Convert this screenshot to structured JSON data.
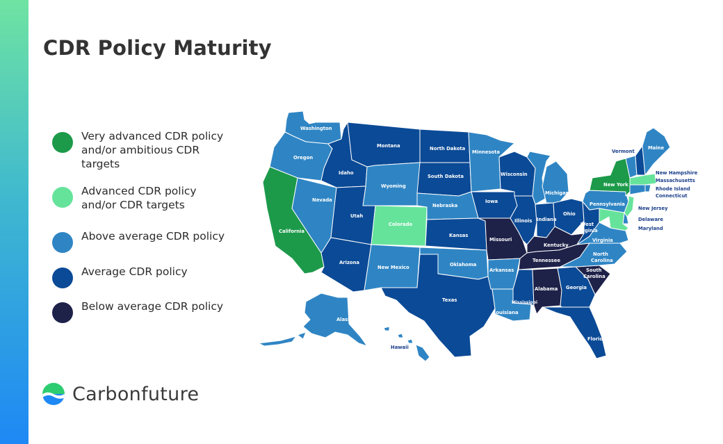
{
  "title": "CDR Policy Maturity",
  "colors": {
    "very_advanced": "#1c9a4a",
    "advanced": "#66e39b",
    "above_average": "#2f85c4",
    "average": "#0b4a96",
    "below_average": "#1e2249"
  },
  "legend": [
    {
      "key": "very_advanced",
      "label": "Very advanced CDR policy and/or ambitious CDR targets"
    },
    {
      "key": "advanced",
      "label": "Advanced CDR policy and/or CDR targets"
    },
    {
      "key": "above_average",
      "label": "Above average CDR policy"
    },
    {
      "key": "average",
      "label": "Average CDR policy"
    },
    {
      "key": "below_average",
      "label": "Below average CDR policy"
    }
  ],
  "map": {
    "states": [
      {
        "name": "Washington",
        "category": "above_average"
      },
      {
        "name": "Oregon",
        "category": "above_average"
      },
      {
        "name": "California",
        "category": "very_advanced"
      },
      {
        "name": "Nevada",
        "category": "above_average"
      },
      {
        "name": "Idaho",
        "category": "average"
      },
      {
        "name": "Montana",
        "category": "average"
      },
      {
        "name": "Wyoming",
        "category": "above_average"
      },
      {
        "name": "Utah",
        "category": "average"
      },
      {
        "name": "Arizona",
        "category": "average"
      },
      {
        "name": "Colorado",
        "category": "advanced"
      },
      {
        "name": "New Mexico",
        "category": "above_average"
      },
      {
        "name": "North Dakota",
        "category": "average"
      },
      {
        "name": "South Dakota",
        "category": "average"
      },
      {
        "name": "Nebraska",
        "category": "above_average"
      },
      {
        "name": "Kansas",
        "category": "average"
      },
      {
        "name": "Oklahoma",
        "category": "above_average"
      },
      {
        "name": "Texas",
        "category": "average"
      },
      {
        "name": "Minnesota",
        "category": "above_average"
      },
      {
        "name": "Iowa",
        "category": "average"
      },
      {
        "name": "Missouri",
        "category": "below_average"
      },
      {
        "name": "Arkansas",
        "category": "above_average"
      },
      {
        "name": "Louisiana",
        "category": "above_average"
      },
      {
        "name": "Wisconsin",
        "category": "average"
      },
      {
        "name": "Illinois",
        "category": "average"
      },
      {
        "name": "Michigan",
        "category": "above_average"
      },
      {
        "name": "Indiana",
        "category": "average"
      },
      {
        "name": "Ohio",
        "category": "average"
      },
      {
        "name": "Kentucky",
        "category": "below_average"
      },
      {
        "name": "Tennessee",
        "category": "below_average"
      },
      {
        "name": "Mississippi",
        "category": "average"
      },
      {
        "name": "Alabama",
        "category": "below_average"
      },
      {
        "name": "Georgia",
        "category": "average"
      },
      {
        "name": "Florida",
        "category": "average"
      },
      {
        "name": "South Carolina",
        "category": "below_average"
      },
      {
        "name": "North Carolina",
        "category": "above_average"
      },
      {
        "name": "Virginia",
        "category": "above_average"
      },
      {
        "name": "West Virginia",
        "category": "average"
      },
      {
        "name": "Pennsylvania",
        "category": "above_average"
      },
      {
        "name": "New York",
        "category": "very_advanced"
      },
      {
        "name": "Vermont",
        "category": "above_average"
      },
      {
        "name": "New Hampshire",
        "category": "average"
      },
      {
        "name": "Maine",
        "category": "above_average"
      },
      {
        "name": "Massachusetts",
        "category": "advanced"
      },
      {
        "name": "Rhode Island",
        "category": "above_average"
      },
      {
        "name": "Connecticut",
        "category": "above_average"
      },
      {
        "name": "New Jersey",
        "category": "advanced"
      },
      {
        "name": "Delaware",
        "category": "above_average"
      },
      {
        "name": "Maryland",
        "category": "advanced"
      },
      {
        "name": "Alaska",
        "category": "above_average"
      },
      {
        "name": "Hawaii",
        "category": "above_average"
      }
    ],
    "labels": {
      "Washington": "Washington",
      "Oregon": "Oregon",
      "California": "California",
      "Nevada": "Nevada",
      "Idaho": "Idaho",
      "Montana": "Montana",
      "Wyoming": "Wyoming",
      "Utah": "Utah",
      "Arizona": "Arizona",
      "Colorado": "Colorado",
      "New Mexico": "New Mexico",
      "North Dakota": "North Dakota",
      "South Dakota": "South Dakota",
      "Nebraska": "Nebraska",
      "Kansas": "Kansas",
      "Oklahoma": "Oklahoma",
      "Texas": "Texas",
      "Minnesota": "Minnesota",
      "Iowa": "Iowa",
      "Missouri": "Missouri",
      "Arkansas": "Arkansas",
      "Louisiana": "Louisiana",
      "Wisconsin": "Wisconsin",
      "Illinois": "Illinois",
      "Michigan": "Michigan",
      "Indiana": "Indiana",
      "Ohio": "Ohio",
      "Kentucky": "Kentucky",
      "Tennessee": "Tennessee",
      "Mississippi": "Mississippi",
      "Alabama": "Alabama",
      "Georgia": "Georgia",
      "Florida": "Florida",
      "South Carolina 1": "South",
      "South Carolina 2": "Carolina",
      "North Carolina 1": "North",
      "North Carolina 2": "Carolina",
      "Virginia": "Virginia",
      "West Virginia 1": "West",
      "West Virginia 2": "Virginia",
      "Pennsylvania": "Pennsylvania",
      "New York": "New York",
      "Vermont": "Vermont",
      "New Hampshire": "New Hampshire",
      "Maine": "Maine",
      "Massachusetts": "Massachusetts",
      "Rhode Island": "Rhode Island",
      "Connecticut": "Connecticut",
      "New Jersey": "New Jersey",
      "Delaware": "Delaware",
      "Maryland": "Maryland",
      "Alaska": "Alaska",
      "Hawaii": "Hawaii"
    }
  },
  "brand": {
    "name": "Carbonfuture",
    "mark_top": "#2ecc71",
    "mark_bottom": "#1e88f5"
  }
}
